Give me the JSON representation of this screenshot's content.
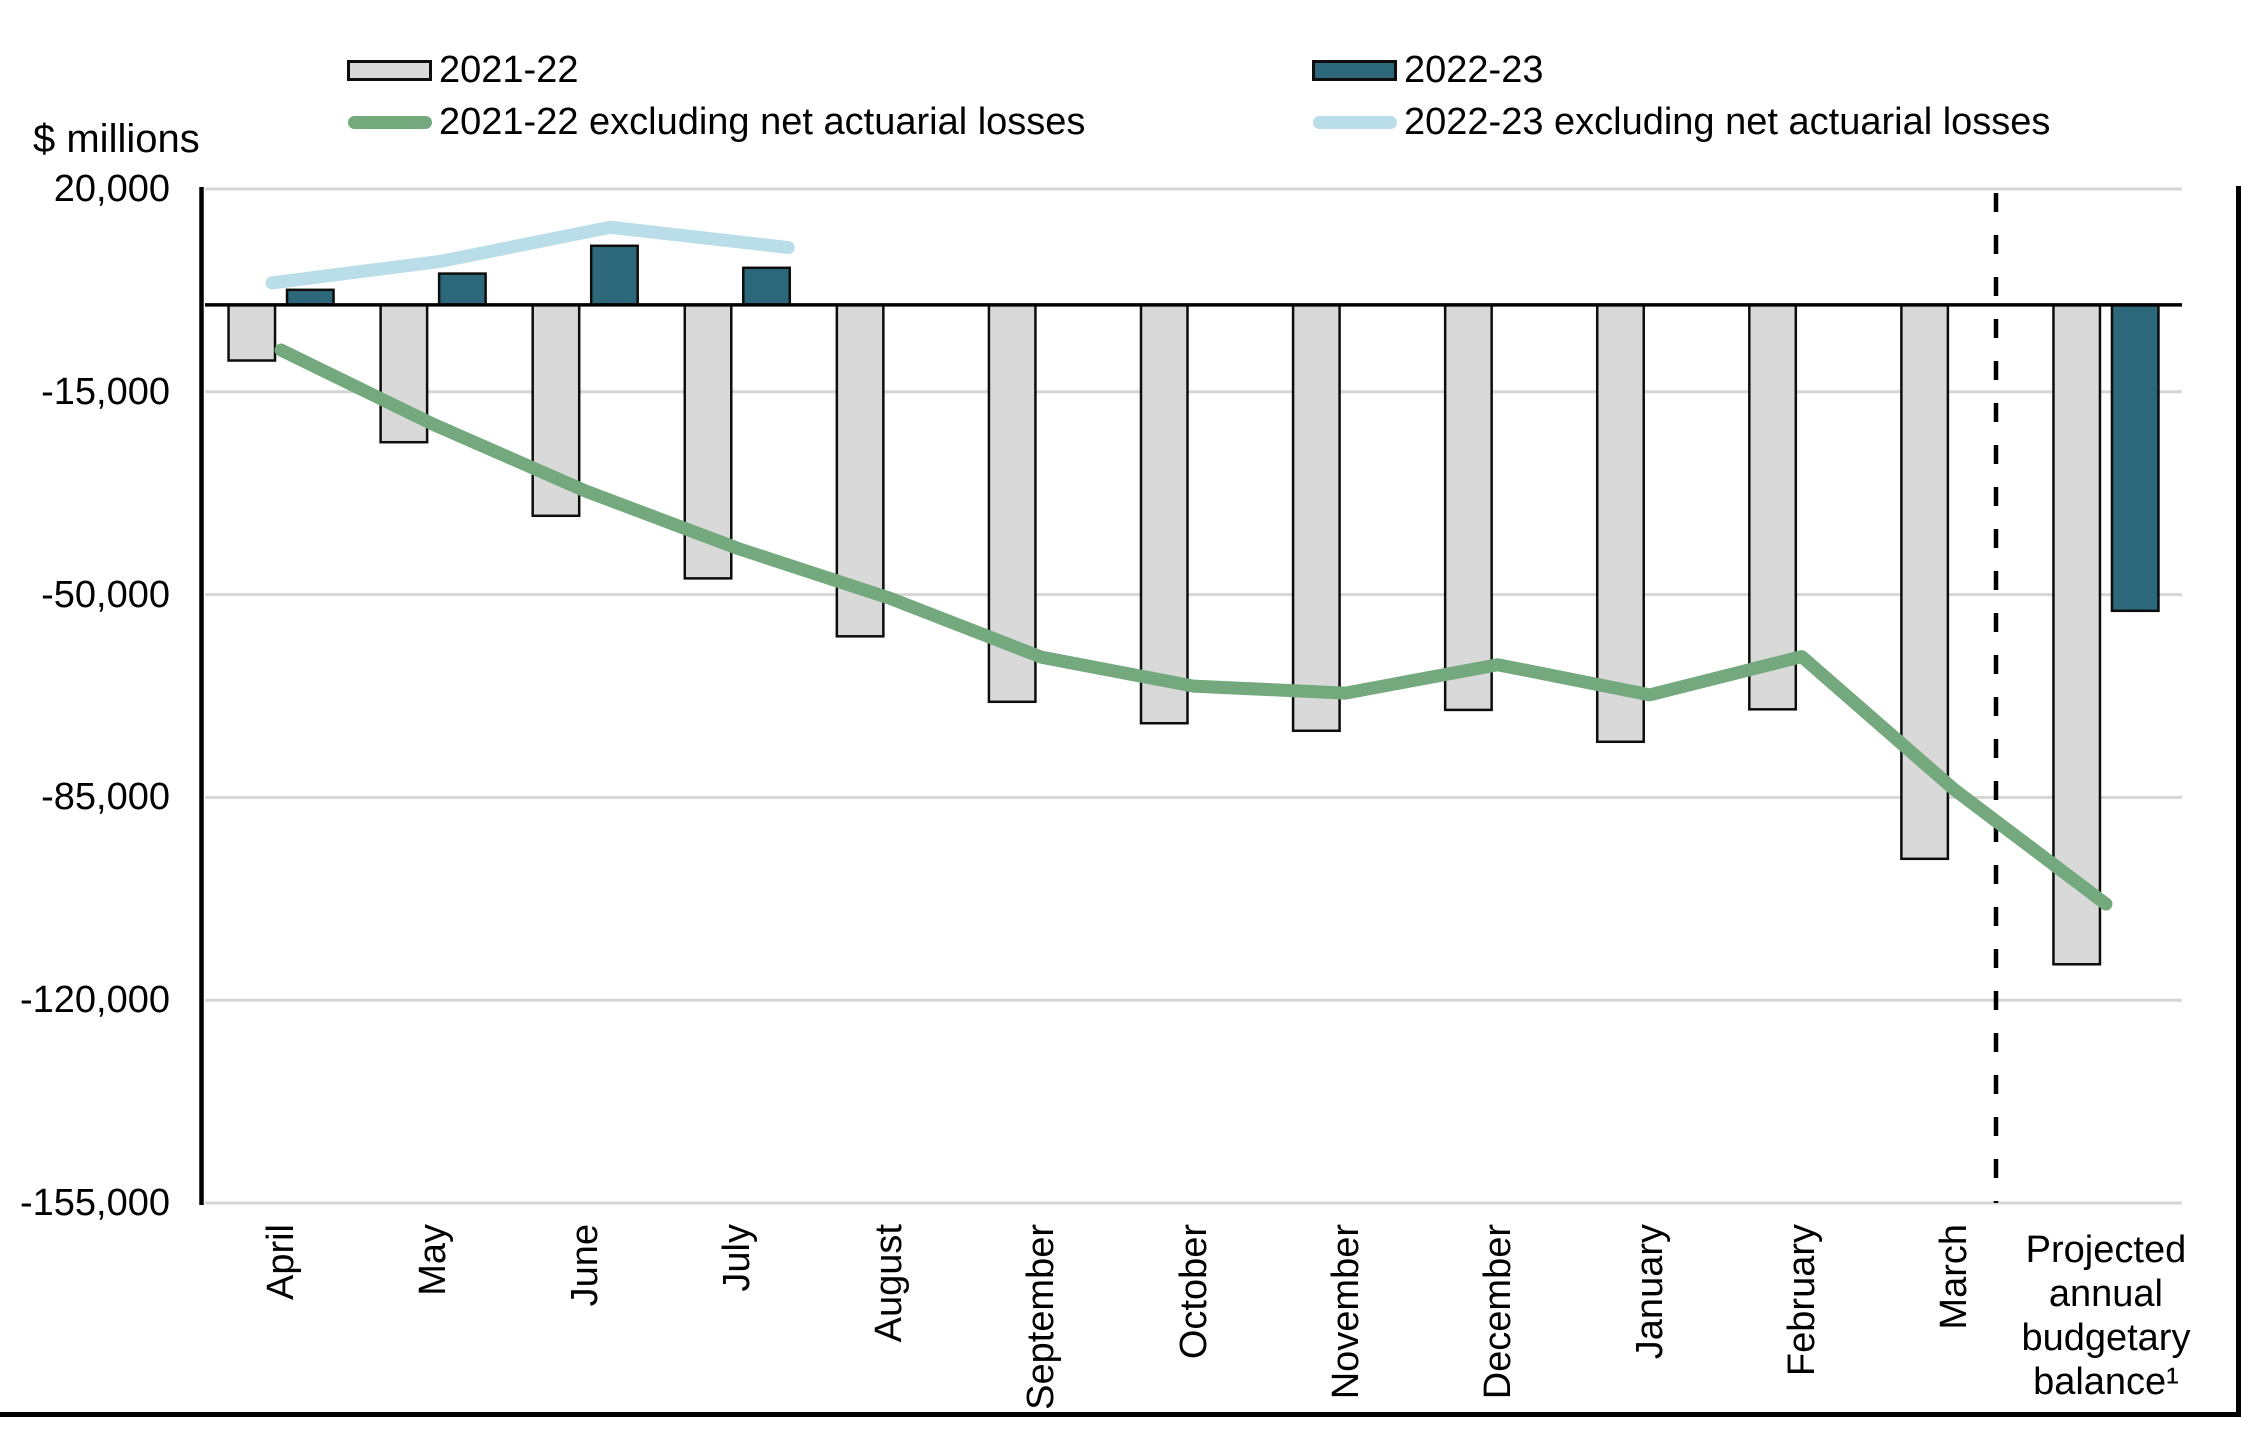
{
  "title": "$ millions",
  "legend": {
    "items": [
      {
        "label": "2021-22",
        "swatch": "bar",
        "color": "#d9d9d9",
        "border_color": "#0d0d0d"
      },
      {
        "label": "2021-22 excluding net actuarial losses",
        "swatch": "line",
        "color": "#73a97d"
      },
      {
        "label": "2022-23",
        "swatch": "bar",
        "color": "#2c6879",
        "border_color": "#0d0d0d"
      },
      {
        "label": "2022-23 excluding net actuarial losses",
        "swatch": "line",
        "color": "#b9dde9"
      }
    ]
  },
  "chart_data": {
    "type": "bar",
    "subtype": "monthly bars with cumulative lines",
    "title": "$ millions",
    "ylabel": "$ millions",
    "xlabel": "",
    "categories": [
      "April",
      "May",
      "June",
      "July",
      "August",
      "September",
      "October",
      "November",
      "December",
      "January",
      "February",
      "March",
      "Projected annual budgetary balance¹"
    ],
    "series": [
      {
        "name": "2021-22",
        "type": "bar",
        "color": "#d9d9d9",
        "border_color": "#0d0d0d",
        "values": [
          -9600,
          -23700,
          -36400,
          -47200,
          -57200,
          -68500,
          -72200,
          -73500,
          -69900,
          -75400,
          -69800,
          -95600,
          -113800
        ]
      },
      {
        "name": "2022-23",
        "type": "bar",
        "color": "#2c6879",
        "border_color": "#0d0d0d",
        "values": [
          2600,
          5400,
          10200,
          6400,
          null,
          null,
          null,
          null,
          null,
          null,
          null,
          null,
          -52800
        ]
      },
      {
        "name": "2021-22 excluding net actuarial losses",
        "type": "line",
        "color": "#73a97d",
        "values": [
          -7800,
          -20600,
          -32100,
          -42000,
          -50600,
          -60800,
          -65800,
          -67000,
          -62100,
          -67300,
          -60700,
          -83600,
          -103400
        ]
      },
      {
        "name": "2022-23 excluding net actuarial losses",
        "type": "line",
        "color": "#b9dde9",
        "values": [
          3800,
          7500,
          13400,
          9900,
          null,
          null,
          null,
          null,
          null,
          null,
          null,
          null,
          null
        ]
      }
    ],
    "y_axis": {
      "min": -155000,
      "max": 20000,
      "tick_interval": 35000,
      "ticks": [
        {
          "value": 20000,
          "label": "20,000"
        },
        {
          "value": -15000,
          "label": "-15,000"
        },
        {
          "value": -50000,
          "label": "-50,000"
        },
        {
          "value": -85000,
          "label": "-85,000"
        },
        {
          "value": -120000,
          "label": "-120,000"
        },
        {
          "value": -155000,
          "label": "-155,000"
        }
      ]
    },
    "gridlines": true,
    "zero_line": true,
    "legend_position": "top",
    "separator_line": {
      "style": "dashed",
      "color": "#000000",
      "after_category": "March",
      "before_category": "Projected annual budgetary balance¹"
    },
    "gridline_color": "#d6d6d6"
  }
}
